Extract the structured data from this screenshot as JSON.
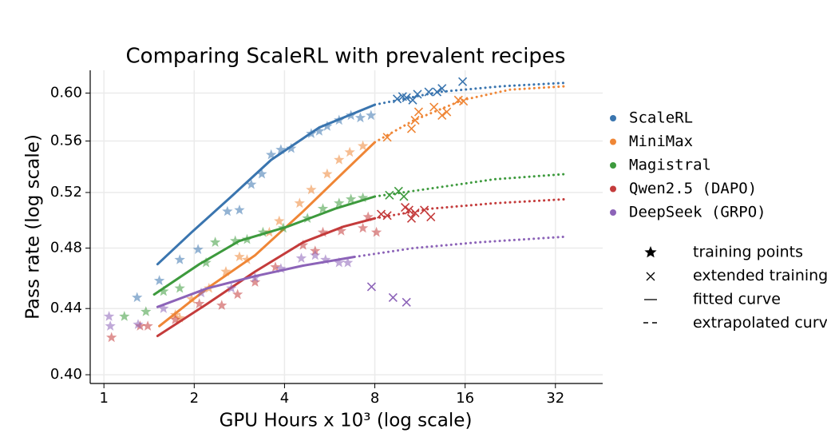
{
  "chart_data": {
    "type": "scatter",
    "title": "Comparing ScaleRL with prevalent recipes",
    "xlabel": "GPU Hours x 10³ (log scale)",
    "ylabel": "Pass rate (log scale)",
    "xscale": "log",
    "yscale": "log",
    "grid": true,
    "xlim": [
      0.9,
      46
    ],
    "ylim": [
      0.395,
      0.62
    ],
    "xticks": [
      1,
      2,
      4,
      8,
      16,
      32
    ],
    "yticks": [
      {
        "value": 0.6,
        "label": "0.60"
      },
      0.56,
      0.52,
      0.48,
      0.44,
      {
        "value": 0.4,
        "label": "0.40"
      }
    ],
    "marker_legend": [
      "training points",
      "extended training",
      "fitted curve",
      "extrapolated curve"
    ],
    "series": [
      {
        "name": "ScaleRL",
        "color": "#3a75af",
        "train_x": [
          1.53,
          1.29,
          1.79,
          2.06,
          2.58,
          2.83,
          3.1,
          3.36,
          3.61,
          3.89,
          4.21,
          4.91,
          5.22,
          5.55,
          6.08,
          6.66,
          7.16,
          7.77
        ],
        "train_y": [
          0.458,
          0.447,
          0.472,
          0.479,
          0.506,
          0.507,
          0.526,
          0.534,
          0.549,
          0.553,
          0.554,
          0.566,
          0.568,
          0.572,
          0.577,
          0.581,
          0.579,
          0.581
        ],
        "ext_x": [
          9.5,
          9.9,
          10.2,
          10.7,
          11.1,
          12.1,
          12.9,
          13.4,
          15.7
        ],
        "ext_y": [
          0.595,
          0.597,
          0.596,
          0.594,
          0.599,
          0.601,
          0.601,
          0.604,
          0.61
        ],
        "fit_x": [
          1.51,
          1.96,
          2.66,
          3.61,
          5.22,
          8
        ],
        "fit_y": [
          0.469,
          0.491,
          0.517,
          0.545,
          0.571,
          0.59
        ],
        "extrap_x": [
          8,
          13.06,
          21.3,
          34.8
        ],
        "extrap_y": [
          0.59,
          0.601,
          0.606,
          0.609
        ]
      },
      {
        "name": "MiniMax",
        "color": "#ef8636",
        "train_x": [
          1.73,
          1.79,
          1.96,
          2.24,
          2.55,
          2.83,
          3.0,
          3.56,
          3.84,
          4.49,
          4.91,
          5.55,
          6.08,
          6.6,
          7.3
        ],
        "train_y": [
          0.436,
          0.434,
          0.446,
          0.453,
          0.464,
          0.474,
          0.472,
          0.491,
          0.499,
          0.512,
          0.522,
          0.534,
          0.545,
          0.551,
          0.556
        ],
        "ext_x": [
          8.8,
          10.6,
          10.9,
          11.2,
          12.6,
          13.4,
          13.9,
          15.2,
          15.8
        ],
        "ext_y": [
          0.563,
          0.57,
          0.577,
          0.584,
          0.588,
          0.581,
          0.584,
          0.594,
          0.593
        ],
        "fit_x": [
          1.53,
          2.21,
          3.19,
          4.61,
          6.27,
          8
        ],
        "fit_y": [
          0.429,
          0.453,
          0.475,
          0.506,
          0.535,
          0.559
        ],
        "extrap_x": [
          8,
          10.8,
          15.7,
          22.6,
          34.8
        ],
        "extrap_y": [
          0.559,
          0.577,
          0.594,
          0.603,
          0.606
        ]
      },
      {
        "name": "Magistral",
        "color": "#3d9a3d",
        "train_x": [
          1.17,
          1.38,
          1.58,
          1.79,
          2.19,
          2.35,
          2.74,
          3.0,
          3.39,
          3.96,
          4.77,
          5.37,
          6.08,
          6.66,
          7.3
        ],
        "train_y": [
          0.435,
          0.438,
          0.451,
          0.453,
          0.47,
          0.484,
          0.485,
          0.486,
          0.491,
          0.494,
          0.501,
          0.508,
          0.512,
          0.515,
          0.516
        ],
        "ext_x": [
          8.95,
          9.6,
          10
        ],
        "ext_y": [
          0.518,
          0.521,
          0.517
        ],
        "fit_x": [
          1.47,
          2.08,
          2.83,
          4.08,
          5.9,
          8
        ],
        "fit_y": [
          0.449,
          0.469,
          0.485,
          0.495,
          0.508,
          0.517
        ],
        "extrap_x": [
          8,
          12.3,
          20,
          34.8
        ],
        "extrap_y": [
          0.517,
          0.523,
          0.53,
          0.534
        ]
      },
      {
        "name": "Qwen2.5 (DAPO)",
        "color": "#c43b3b",
        "train_x": [
          1.06,
          1.32,
          1.4,
          1.73,
          2.08,
          2.47,
          2.79,
          3.19,
          3.73,
          4.61,
          5.06,
          5.37,
          6.18,
          7.3,
          8.1,
          7.6
        ],
        "train_y": [
          0.422,
          0.429,
          0.429,
          0.433,
          0.443,
          0.442,
          0.449,
          0.457,
          0.467,
          0.482,
          0.478,
          0.491,
          0.492,
          0.494,
          0.491,
          0.502
        ],
        "ext_x": [
          8.4,
          8.8,
          10.1,
          10.4,
          10.6,
          10.9,
          11.7,
          12.3
        ],
        "ext_y": [
          0.504,
          0.503,
          0.509,
          0.507,
          0.501,
          0.505,
          0.507,
          0.502
        ],
        "fit_x": [
          1.51,
          2.21,
          3.19,
          4.61,
          6.27,
          8
        ],
        "fit_y": [
          0.423,
          0.443,
          0.464,
          0.484,
          0.495,
          0.501
        ],
        "extrap_x": [
          8,
          12.3,
          20,
          34.8
        ],
        "extrap_y": [
          0.501,
          0.508,
          0.512,
          0.515
        ]
      },
      {
        "name": "DeepSeek (GRPO)",
        "color": "#8c63b8",
        "train_x": [
          1.04,
          1.05,
          1.3,
          1.58,
          2.11,
          2.66,
          3.19,
          3.89,
          4.55,
          5.06,
          5.48,
          6.08,
          6.5
        ],
        "train_y": [
          0.435,
          0.429,
          0.43,
          0.44,
          0.45,
          0.453,
          0.46,
          0.466,
          0.473,
          0.475,
          0.472,
          0.47,
          0.47
        ],
        "ext_x": [
          7.8,
          9.2,
          10.2
        ],
        "ext_y": [
          0.454,
          0.447,
          0.444
        ],
        "fit_x": [
          1.51,
          2.21,
          3.19,
          4.61,
          6.85
        ],
        "fit_y": [
          0.441,
          0.453,
          0.461,
          0.468,
          0.474
        ],
        "extrap_x": [
          6.85,
          10.8,
          17.7,
          34.8
        ],
        "extrap_y": [
          0.474,
          0.48,
          0.484,
          0.488
        ]
      }
    ]
  }
}
